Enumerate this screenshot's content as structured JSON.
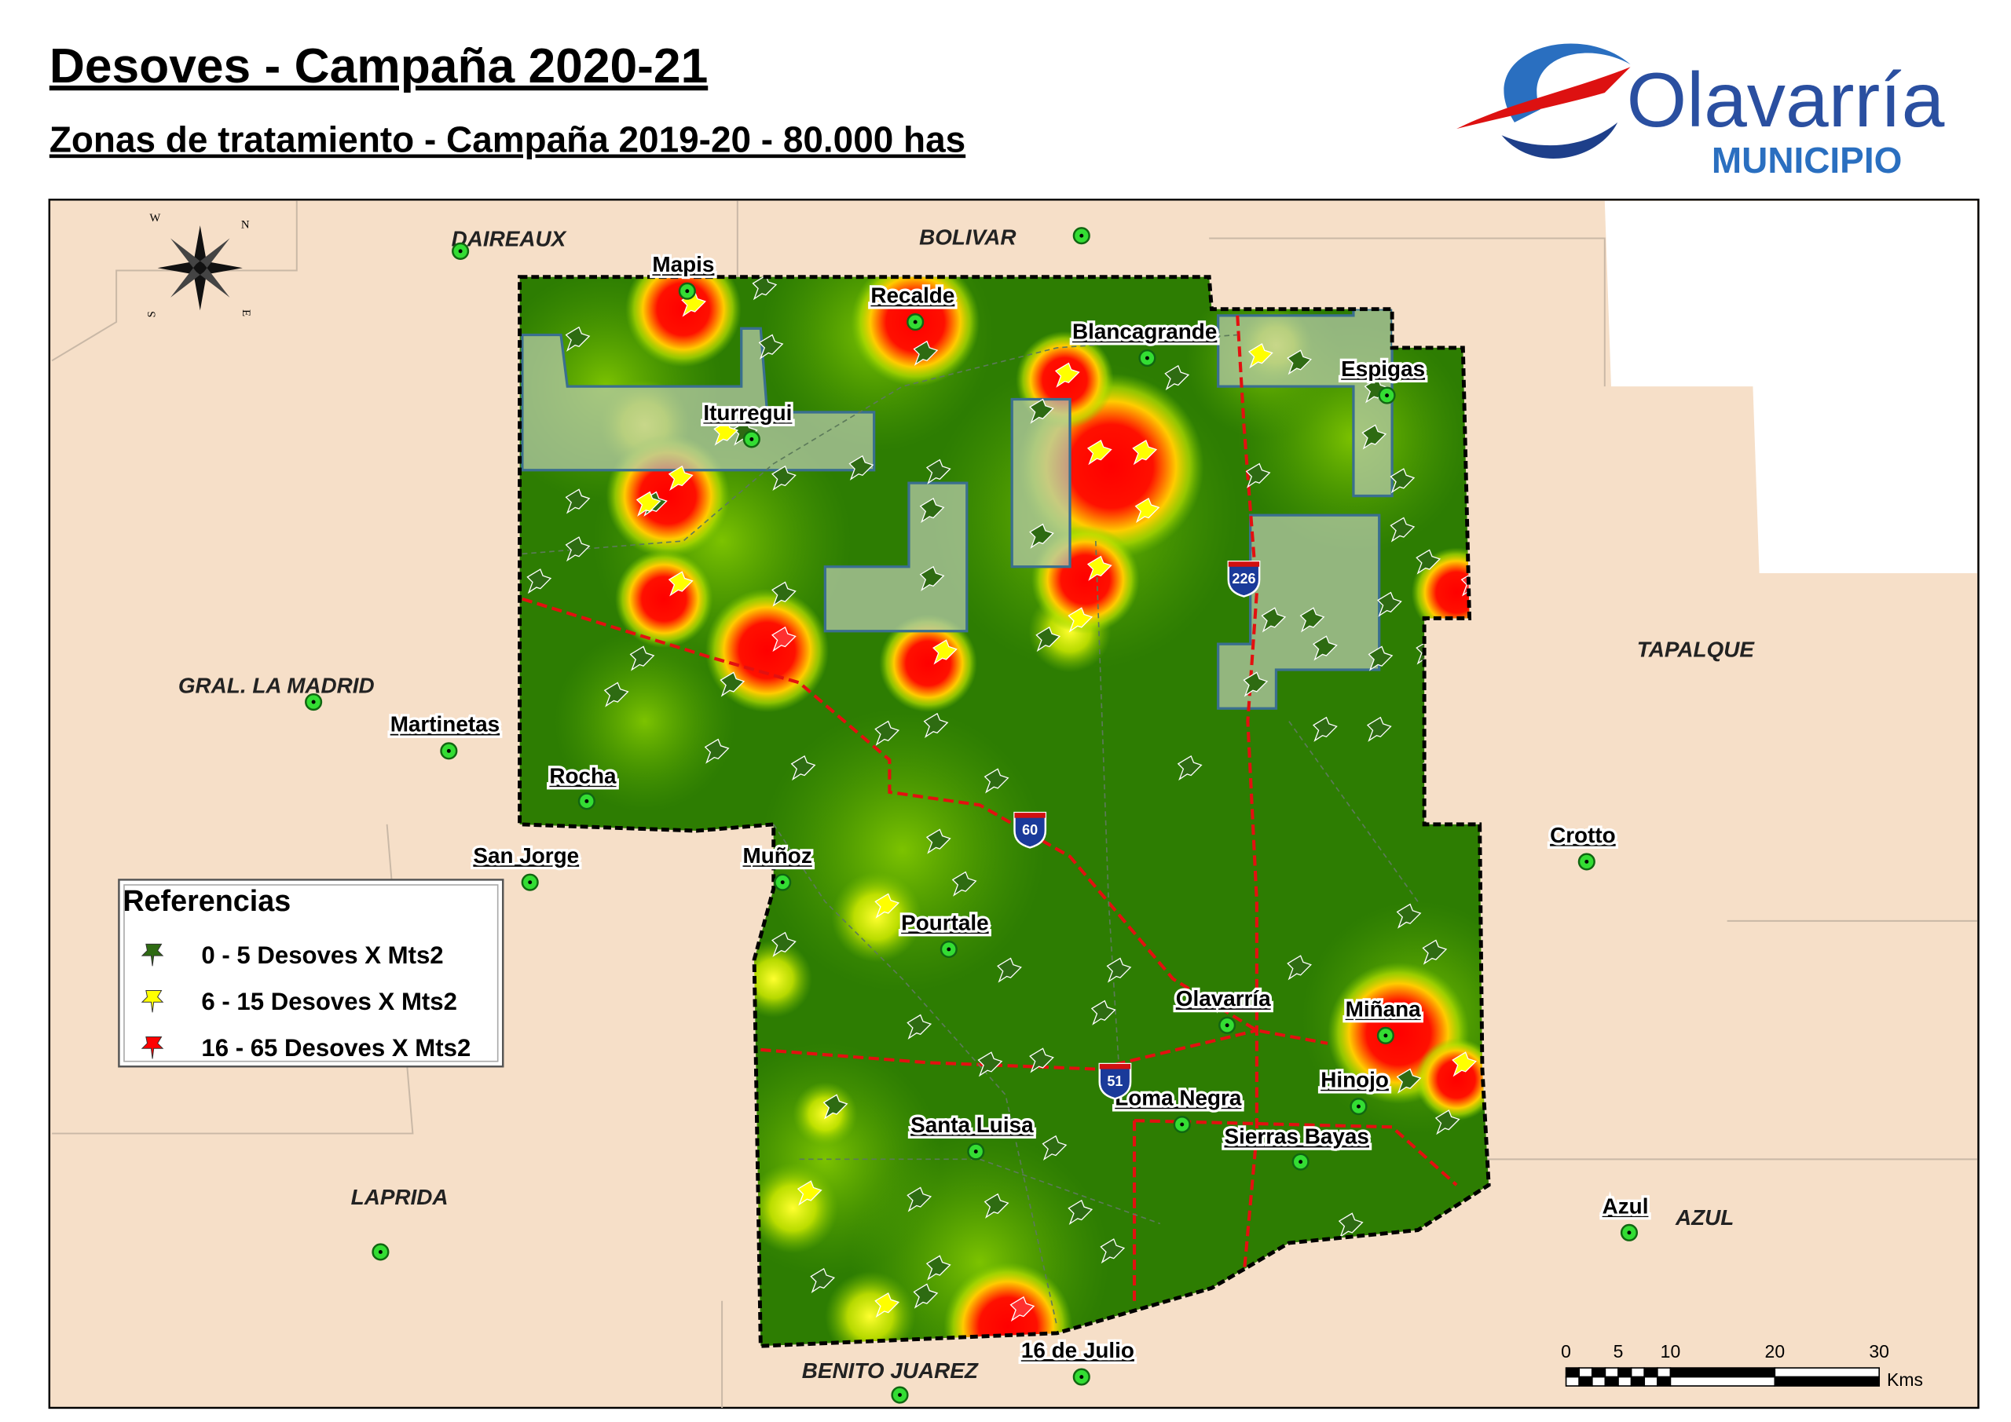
{
  "header": {
    "title": "Desoves -  Campaña 2020-21",
    "subtitle": "Zonas de tratamiento - Campaña 2019-20 - 80.000 has"
  },
  "logo": {
    "name": "Olavarría",
    "subname": "MUNICIPIO"
  },
  "compass": [
    "W",
    "N",
    "S",
    "E"
  ],
  "districts": [
    "DAIREAUX",
    "BOLIVAR",
    "TAPALQUE",
    "GRAL. LA MADRID",
    "LAPRIDA",
    "BENITO JUAREZ",
    "AZUL"
  ],
  "localities": [
    "Mapis",
    "Recalde",
    "Blancagrande",
    "Espigas",
    "Iturregui",
    "Martinetas",
    "Rocha",
    "San Jorge",
    "Muñoz",
    "Pourtale",
    "Olavarría",
    "Miñana",
    "Hinojo",
    "Loma Negra",
    "Sierras Bayas",
    "Santa Luisa",
    "16 de Julio",
    "Crotto",
    "Azul"
  ],
  "routes": [
    "226",
    "60",
    "51"
  ],
  "legend": {
    "title": "Referencias",
    "items": [
      {
        "label": "0 - 5 Desoves X Mts2",
        "color": "#2e6b12"
      },
      {
        "label": "6 - 15 Desoves X Mts2",
        "color": "#ffff00"
      },
      {
        "label": "16 - 65 Desoves X Mts2",
        "color": "#ff0000"
      }
    ]
  },
  "scale": {
    "ticks": [
      0,
      5,
      10,
      20,
      30
    ],
    "unit": "Kms"
  }
}
